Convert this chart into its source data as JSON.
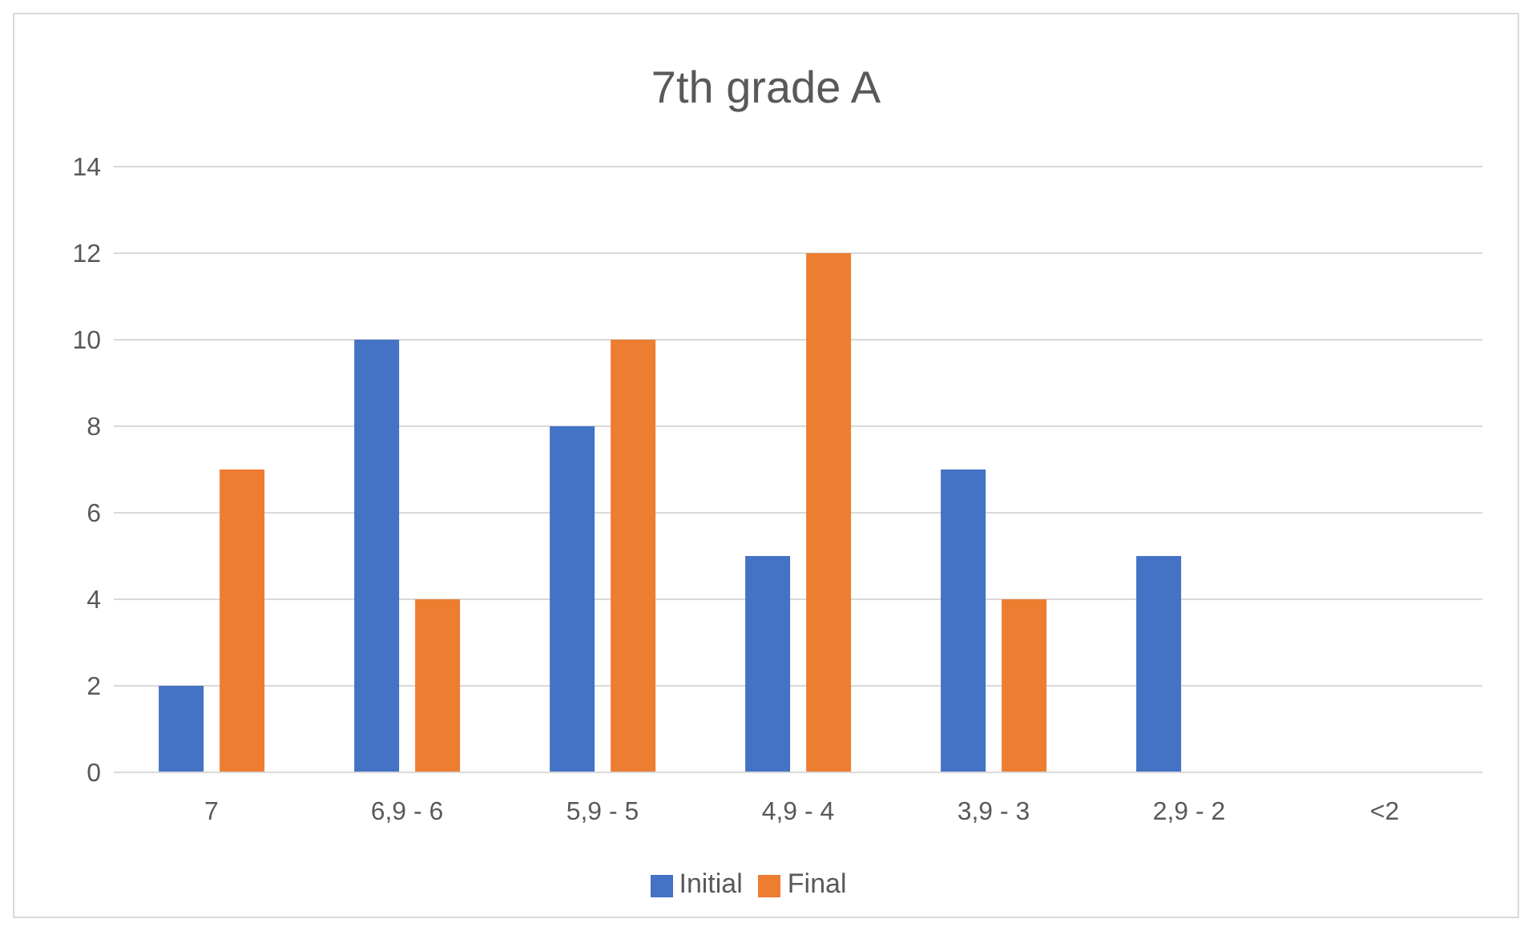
{
  "chart_data": {
    "type": "bar",
    "title": "7th grade A",
    "categories": [
      "7",
      "6,9 - 6",
      "5,9 - 5",
      "4,9 - 4",
      "3,9 - 3",
      "2,9 - 2",
      "<2"
    ],
    "series": [
      {
        "name": "Initial",
        "color": "#4472c4",
        "values": [
          2,
          10,
          8,
          5,
          7,
          5,
          0
        ]
      },
      {
        "name": "Final",
        "color": "#ed7d31",
        "values": [
          7,
          4,
          10,
          12,
          4,
          0,
          0
        ]
      }
    ],
    "ylim": [
      0,
      14
    ],
    "yticks": [
      0,
      2,
      4,
      6,
      8,
      10,
      12,
      14
    ],
    "grid": "y",
    "legend": "bottom"
  }
}
